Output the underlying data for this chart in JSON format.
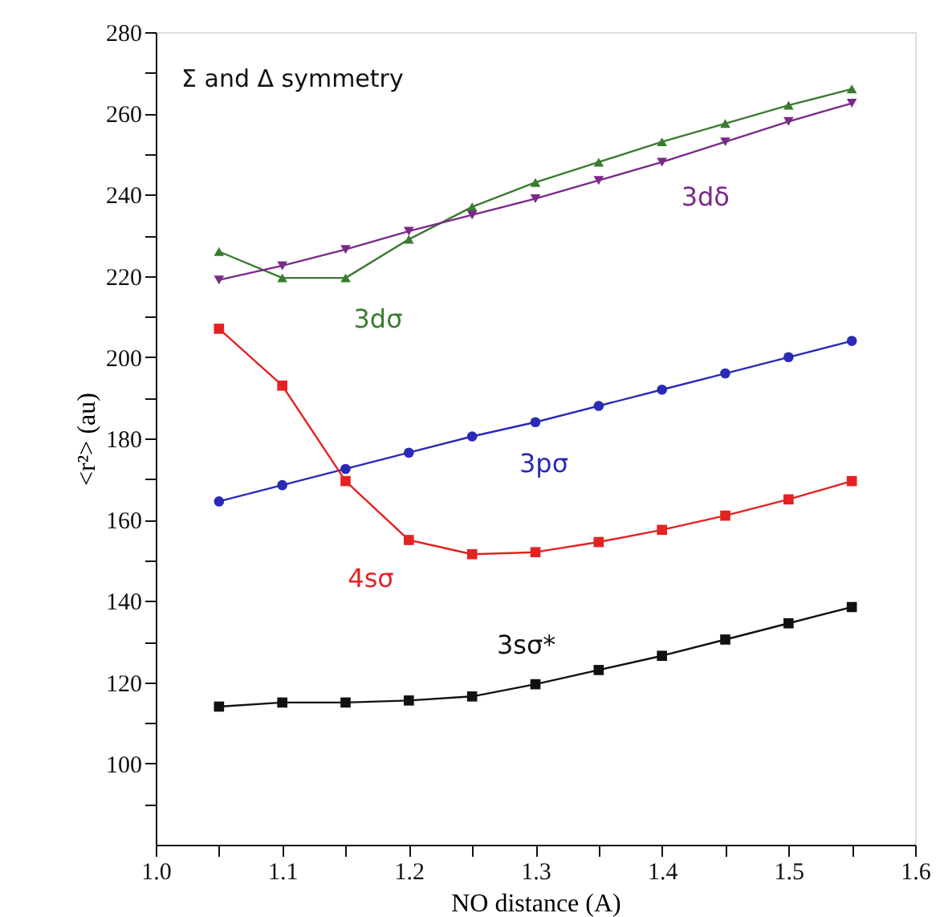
{
  "chart_data": {
    "type": "line",
    "xlabel": "NO distance (A)",
    "ylabel": "<r²> (au)",
    "annotations": [
      "Σ and Δ symmetry"
    ],
    "x": [
      1.05,
      1.1,
      1.15,
      1.2,
      1.25,
      1.3,
      1.35,
      1.4,
      1.45,
      1.5,
      1.55
    ],
    "xlim": [
      1.0,
      1.6
    ],
    "xticks": [
      {
        "value": 1.0,
        "label": "1.0"
      },
      {
        "value": 1.05,
        "label": null
      },
      {
        "value": 1.1,
        "label": "1.1"
      },
      {
        "value": 1.15,
        "label": null
      },
      {
        "value": 1.2,
        "label": "1.2"
      },
      {
        "value": 1.25,
        "label": null
      },
      {
        "value": 1.3,
        "label": "1.3"
      },
      {
        "value": 1.35,
        "label": null
      },
      {
        "value": 1.4,
        "label": "1.4"
      },
      {
        "value": 1.45,
        "label": null
      },
      {
        "value": 1.5,
        "label": "1.5"
      },
      {
        "value": 1.55,
        "label": null
      },
      {
        "value": 1.6,
        "label": "1.6"
      }
    ],
    "ylim": [
      80,
      280
    ],
    "yticks": [
      {
        "value": 90,
        "label": null
      },
      100,
      {
        "value": 110,
        "label": null
      },
      120,
      {
        "value": 130,
        "label": null
      },
      140,
      {
        "value": 150,
        "label": null
      },
      160,
      {
        "value": 170,
        "label": null
      },
      180,
      {
        "value": 190,
        "label": null
      },
      200,
      {
        "value": 210,
        "label": null
      },
      220,
      {
        "value": 230,
        "label": null
      },
      240,
      {
        "value": 250,
        "label": null
      },
      260,
      {
        "value": 270,
        "label": null
      },
      280
    ],
    "grid": false,
    "line_style": "solid",
    "series": [
      {
        "name": "3dσ",
        "color": "#3c7a32",
        "marker": "triangle",
        "values": [
          226,
          219.5,
          219.5,
          229,
          237,
          243,
          248,
          253,
          257.5,
          262,
          266
        ]
      },
      {
        "name": "3dδ",
        "color": "#7a2a8a",
        "marker": "triangle-down",
        "values": [
          219,
          222.5,
          226.5,
          231,
          235,
          239,
          243.5,
          248,
          253,
          258,
          262.5
        ]
      },
      {
        "name": "3pσ",
        "color": "#2a2ab8",
        "marker": "circle",
        "values": [
          164.5,
          168.5,
          172.5,
          176.5,
          180.5,
          184,
          188,
          192,
          196,
          200,
          204
        ]
      },
      {
        "name": "4sσ",
        "color": "#e42222",
        "marker": "square",
        "values": [
          207,
          193,
          169.5,
          155,
          151.5,
          152,
          154.5,
          157.5,
          161,
          165,
          169.5
        ]
      },
      {
        "name": "3sσ*",
        "color": "#111111",
        "marker": "square",
        "values": [
          114,
          115,
          115,
          115.5,
          116.5,
          119.5,
          123,
          126.5,
          130.5,
          134.5,
          138.5
        ]
      }
    ]
  }
}
